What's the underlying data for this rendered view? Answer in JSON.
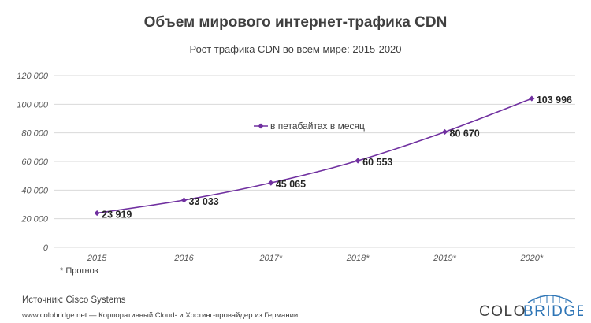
{
  "title": "Объем мирового интернет-трафика CDN",
  "subtitle": "Рост трафика CDN во всем мире: 2015-2020",
  "footnote": "* Прогноз",
  "source": "Источник:  Cisco Systems",
  "site": "www.colobridge.net — Корпоративный Cloud- и Хостинг-провайдер из Германии",
  "logo": {
    "text_left": "COLO",
    "text_right": "BRIDGE"
  },
  "colors": {
    "series": "#7030A0",
    "grid": "#D9D9D9",
    "logo_dark": "#404040",
    "logo_accent": "#2E75B6"
  },
  "chart_data": {
    "type": "line",
    "categories": [
      "2015",
      "2016",
      "2017*",
      "2018*",
      "2019*",
      "2020*"
    ],
    "series": [
      {
        "name": "в петабайтах  в месяц",
        "values": [
          23919,
          33033,
          45065,
          60553,
          80670,
          103996
        ],
        "labels": [
          "23 919",
          "33 033",
          "45 065",
          "60 553",
          "80 670",
          "103 996"
        ]
      }
    ],
    "yticks": [
      "0",
      "20 000",
      "40 000",
      "60 000",
      "80 000",
      "100 000",
      "120 000"
    ],
    "ylim": [
      0,
      120000
    ],
    "grid": true,
    "legend": "center-top"
  }
}
